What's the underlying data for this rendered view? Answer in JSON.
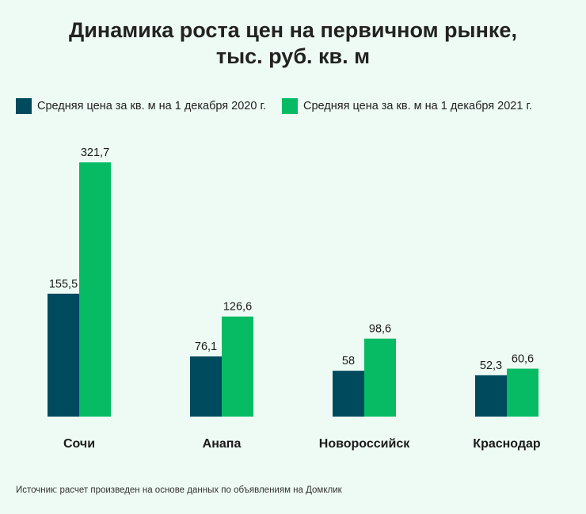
{
  "chart_data": {
    "type": "bar",
    "title_lines": [
      "Динамика роста цен на первичном рынке,",
      "тыс. руб. кв. м"
    ],
    "categories": [
      "Сочи",
      "Анапа",
      "Новороссийск",
      "Краснодар"
    ],
    "series": [
      {
        "name": "Средняя цена за кв. м на 1 декабря 2020 г.",
        "color": "#004a5e",
        "values": [
          155.5,
          76.1,
          58,
          52.3
        ],
        "labels": [
          "155,5",
          "76,1",
          "58",
          "52,3"
        ]
      },
      {
        "name": "Средняя цена за кв. м на 1 декабря 2021 г.",
        "color": "#06bb63",
        "values": [
          321.7,
          126.6,
          98.6,
          60.6
        ],
        "labels": [
          "321,7",
          "126,6",
          "98,6",
          "60,6"
        ]
      }
    ],
    "ylim": [
      0,
      321.7
    ],
    "grid": false,
    "legend": "top-left"
  },
  "source": "Источник: расчет произведен на основе данных по объявлениям на Домклик"
}
